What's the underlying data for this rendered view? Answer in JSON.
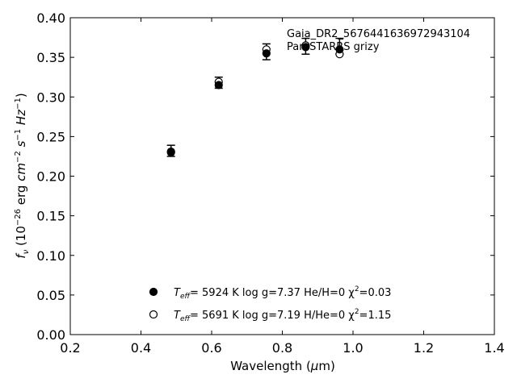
{
  "chart_data": {
    "type": "scatter",
    "title": "",
    "xlabel": "Wavelength (μm)",
    "ylabel": "f_ν (10^-26 erg cm^-2 s^-1 Hz^-1)",
    "xlim": [
      0.2,
      1.4
    ],
    "ylim": [
      0.0,
      0.4
    ],
    "xticks": [
      "0.2",
      "0.4",
      "0.6",
      "0.8",
      "1.0",
      "1.2",
      "1.4"
    ],
    "yticks": [
      "0.00",
      "0.05",
      "0.10",
      "0.15",
      "0.20",
      "0.25",
      "0.30",
      "0.35",
      "0.40"
    ],
    "grid": false,
    "annotation": {
      "line1": "Gaia_DR2_5676441636972943104",
      "line2": "Pan-STARRS grizy"
    },
    "observed": {
      "x": [
        0.485,
        0.62,
        0.755,
        0.866,
        0.962
      ],
      "y": [
        0.232,
        0.318,
        0.357,
        0.364,
        0.364
      ],
      "yerr": [
        0.007,
        0.007,
        0.01,
        0.01,
        0.01
      ]
    },
    "series": [
      {
        "name": "Teff= 5924 K log g=7.37 He/H=0 χ2=0.03",
        "marker": "filled",
        "x": [
          0.485,
          0.62,
          0.755,
          0.866,
          0.962
        ],
        "y": [
          0.231,
          0.315,
          0.355,
          0.363,
          0.36
        ]
      },
      {
        "name": "Teff= 5691 K log g=7.19 H/He=0 χ2=1.15",
        "marker": "open",
        "x": [
          0.485,
          0.62,
          0.755,
          0.866,
          0.962
        ],
        "y": [
          0.23,
          0.319,
          0.36,
          0.365,
          0.354
        ]
      }
    ],
    "legend": {
      "placement": "bottom-center",
      "entries": [
        {
          "teff_label": "T",
          "teff_sub": "eff",
          "rest": "=  5924 K  log g=7.37  He/H=0  χ",
          "sup": "2",
          "tail": "=0.03",
          "marker": "filled"
        },
        {
          "teff_label": "T",
          "teff_sub": "eff",
          "rest": "=  5691 K  log g=7.19  H/He=0  χ",
          "sup": "2",
          "tail": "=1.15",
          "marker": "open"
        }
      ]
    }
  }
}
